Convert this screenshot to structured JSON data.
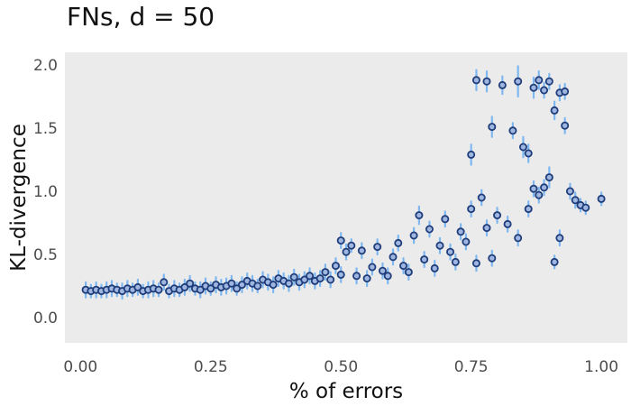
{
  "chart_data": {
    "type": "scatter",
    "title": "FNs, d = 50",
    "xlabel": "% of errors",
    "ylabel": "KL-divergence",
    "xlim": [
      -0.03,
      1.05
    ],
    "ylim": [
      -0.2,
      2.1
    ],
    "xticks": [
      0.0,
      0.25,
      0.5,
      0.75,
      1.0
    ],
    "xtick_labels": [
      "0.00",
      "0.25",
      "0.50",
      "0.75",
      "1.00"
    ],
    "yticks": [
      0.0,
      0.5,
      1.0,
      1.5,
      2.0
    ],
    "ytick_labels": [
      "0.0",
      "0.5",
      "1.0",
      "1.5",
      "2.0"
    ],
    "grid": false,
    "colors": {
      "point": "#1f3d7a",
      "error_bar": "#7fb8f0",
      "panel": "#ebebeb"
    },
    "error_bars": "vertical",
    "points": [
      {
        "x": 0.01,
        "y": 0.22,
        "err": 0.06
      },
      {
        "x": 0.02,
        "y": 0.21,
        "err": 0.05
      },
      {
        "x": 0.03,
        "y": 0.22,
        "err": 0.06
      },
      {
        "x": 0.04,
        "y": 0.21,
        "err": 0.05
      },
      {
        "x": 0.05,
        "y": 0.22,
        "err": 0.06
      },
      {
        "x": 0.06,
        "y": 0.23,
        "err": 0.06
      },
      {
        "x": 0.07,
        "y": 0.22,
        "err": 0.05
      },
      {
        "x": 0.08,
        "y": 0.21,
        "err": 0.06
      },
      {
        "x": 0.09,
        "y": 0.23,
        "err": 0.06
      },
      {
        "x": 0.1,
        "y": 0.22,
        "err": 0.05
      },
      {
        "x": 0.11,
        "y": 0.24,
        "err": 0.06
      },
      {
        "x": 0.12,
        "y": 0.21,
        "err": 0.05
      },
      {
        "x": 0.13,
        "y": 0.22,
        "err": 0.06
      },
      {
        "x": 0.14,
        "y": 0.23,
        "err": 0.06
      },
      {
        "x": 0.15,
        "y": 0.22,
        "err": 0.05
      },
      {
        "x": 0.16,
        "y": 0.28,
        "err": 0.06
      },
      {
        "x": 0.17,
        "y": 0.21,
        "err": 0.05
      },
      {
        "x": 0.18,
        "y": 0.23,
        "err": 0.06
      },
      {
        "x": 0.19,
        "y": 0.22,
        "err": 0.05
      },
      {
        "x": 0.2,
        "y": 0.24,
        "err": 0.06
      },
      {
        "x": 0.21,
        "y": 0.27,
        "err": 0.06
      },
      {
        "x": 0.22,
        "y": 0.23,
        "err": 0.05
      },
      {
        "x": 0.23,
        "y": 0.22,
        "err": 0.06
      },
      {
        "x": 0.24,
        "y": 0.25,
        "err": 0.06
      },
      {
        "x": 0.25,
        "y": 0.23,
        "err": 0.05
      },
      {
        "x": 0.26,
        "y": 0.26,
        "err": 0.06
      },
      {
        "x": 0.27,
        "y": 0.24,
        "err": 0.06
      },
      {
        "x": 0.28,
        "y": 0.25,
        "err": 0.06
      },
      {
        "x": 0.29,
        "y": 0.27,
        "err": 0.06
      },
      {
        "x": 0.3,
        "y": 0.23,
        "err": 0.05
      },
      {
        "x": 0.31,
        "y": 0.26,
        "err": 0.06
      },
      {
        "x": 0.32,
        "y": 0.29,
        "err": 0.06
      },
      {
        "x": 0.33,
        "y": 0.27,
        "err": 0.06
      },
      {
        "x": 0.34,
        "y": 0.25,
        "err": 0.05
      },
      {
        "x": 0.35,
        "y": 0.3,
        "err": 0.06
      },
      {
        "x": 0.36,
        "y": 0.28,
        "err": 0.06
      },
      {
        "x": 0.37,
        "y": 0.26,
        "err": 0.06
      },
      {
        "x": 0.38,
        "y": 0.31,
        "err": 0.06
      },
      {
        "x": 0.39,
        "y": 0.29,
        "err": 0.06
      },
      {
        "x": 0.4,
        "y": 0.27,
        "err": 0.06
      },
      {
        "x": 0.41,
        "y": 0.32,
        "err": 0.06
      },
      {
        "x": 0.42,
        "y": 0.28,
        "err": 0.06
      },
      {
        "x": 0.43,
        "y": 0.3,
        "err": 0.06
      },
      {
        "x": 0.44,
        "y": 0.33,
        "err": 0.06
      },
      {
        "x": 0.45,
        "y": 0.29,
        "err": 0.06
      },
      {
        "x": 0.46,
        "y": 0.31,
        "err": 0.06
      },
      {
        "x": 0.47,
        "y": 0.36,
        "err": 0.06
      },
      {
        "x": 0.48,
        "y": 0.3,
        "err": 0.06
      },
      {
        "x": 0.49,
        "y": 0.41,
        "err": 0.06
      },
      {
        "x": 0.5,
        "y": 0.61,
        "err": 0.06
      },
      {
        "x": 0.5,
        "y": 0.34,
        "err": 0.06
      },
      {
        "x": 0.51,
        "y": 0.52,
        "err": 0.06
      },
      {
        "x": 0.52,
        "y": 0.57,
        "err": 0.05
      },
      {
        "x": 0.53,
        "y": 0.33,
        "err": 0.06
      },
      {
        "x": 0.54,
        "y": 0.53,
        "err": 0.06
      },
      {
        "x": 0.55,
        "y": 0.31,
        "err": 0.06
      },
      {
        "x": 0.56,
        "y": 0.4,
        "err": 0.06
      },
      {
        "x": 0.57,
        "y": 0.56,
        "err": 0.06
      },
      {
        "x": 0.58,
        "y": 0.37,
        "err": 0.06
      },
      {
        "x": 0.59,
        "y": 0.33,
        "err": 0.06
      },
      {
        "x": 0.6,
        "y": 0.48,
        "err": 0.06
      },
      {
        "x": 0.61,
        "y": 0.59,
        "err": 0.06
      },
      {
        "x": 0.62,
        "y": 0.41,
        "err": 0.06
      },
      {
        "x": 0.63,
        "y": 0.36,
        "err": 0.06
      },
      {
        "x": 0.64,
        "y": 0.65,
        "err": 0.06
      },
      {
        "x": 0.65,
        "y": 0.81,
        "err": 0.07
      },
      {
        "x": 0.66,
        "y": 0.46,
        "err": 0.06
      },
      {
        "x": 0.67,
        "y": 0.7,
        "err": 0.06
      },
      {
        "x": 0.68,
        "y": 0.39,
        "err": 0.06
      },
      {
        "x": 0.69,
        "y": 0.57,
        "err": 0.06
      },
      {
        "x": 0.7,
        "y": 0.78,
        "err": 0.06
      },
      {
        "x": 0.71,
        "y": 0.52,
        "err": 0.06
      },
      {
        "x": 0.72,
        "y": 0.44,
        "err": 0.06
      },
      {
        "x": 0.73,
        "y": 0.68,
        "err": 0.06
      },
      {
        "x": 0.74,
        "y": 0.6,
        "err": 0.06
      },
      {
        "x": 0.75,
        "y": 1.29,
        "err": 0.08
      },
      {
        "x": 0.75,
        "y": 0.86,
        "err": 0.06
      },
      {
        "x": 0.76,
        "y": 1.88,
        "err": 0.08
      },
      {
        "x": 0.76,
        "y": 0.43,
        "err": 0.06
      },
      {
        "x": 0.77,
        "y": 0.95,
        "err": 0.06
      },
      {
        "x": 0.78,
        "y": 1.87,
        "err": 0.08
      },
      {
        "x": 0.78,
        "y": 0.71,
        "err": 0.06
      },
      {
        "x": 0.79,
        "y": 1.51,
        "err": 0.08
      },
      {
        "x": 0.79,
        "y": 0.47,
        "err": 0.06
      },
      {
        "x": 0.8,
        "y": 0.81,
        "err": 0.06
      },
      {
        "x": 0.81,
        "y": 1.84,
        "err": 0.07
      },
      {
        "x": 0.82,
        "y": 0.74,
        "err": 0.06
      },
      {
        "x": 0.83,
        "y": 1.48,
        "err": 0.06
      },
      {
        "x": 0.84,
        "y": 0.63,
        "err": 0.06
      },
      {
        "x": 0.84,
        "y": 1.87,
        "err": 0.12
      },
      {
        "x": 0.85,
        "y": 1.35,
        "err": 0.08
      },
      {
        "x": 0.86,
        "y": 1.3,
        "err": 0.07
      },
      {
        "x": 0.86,
        "y": 0.86,
        "err": 0.06
      },
      {
        "x": 0.87,
        "y": 1.82,
        "err": 0.08
      },
      {
        "x": 0.87,
        "y": 1.02,
        "err": 0.06
      },
      {
        "x": 0.88,
        "y": 1.88,
        "err": 0.07
      },
      {
        "x": 0.88,
        "y": 0.97,
        "err": 0.06
      },
      {
        "x": 0.89,
        "y": 1.03,
        "err": 0.06
      },
      {
        "x": 0.89,
        "y": 1.8,
        "err": 0.06
      },
      {
        "x": 0.9,
        "y": 1.87,
        "err": 0.06
      },
      {
        "x": 0.9,
        "y": 1.11,
        "err": 0.08
      },
      {
        "x": 0.91,
        "y": 1.64,
        "err": 0.07
      },
      {
        "x": 0.91,
        "y": 0.44,
        "err": 0.05
      },
      {
        "x": 0.92,
        "y": 1.78,
        "err": 0.06
      },
      {
        "x": 0.92,
        "y": 0.63,
        "err": 0.06
      },
      {
        "x": 0.93,
        "y": 1.52,
        "err": 0.06
      },
      {
        "x": 0.93,
        "y": 1.79,
        "err": 0.06
      },
      {
        "x": 0.94,
        "y": 1.0,
        "err": 0.06
      },
      {
        "x": 0.95,
        "y": 0.93,
        "err": 0.06
      },
      {
        "x": 0.96,
        "y": 0.89,
        "err": 0.05
      },
      {
        "x": 0.97,
        "y": 0.87,
        "err": 0.05
      },
      {
        "x": 1.0,
        "y": 0.94,
        "err": 0.05
      }
    ]
  }
}
